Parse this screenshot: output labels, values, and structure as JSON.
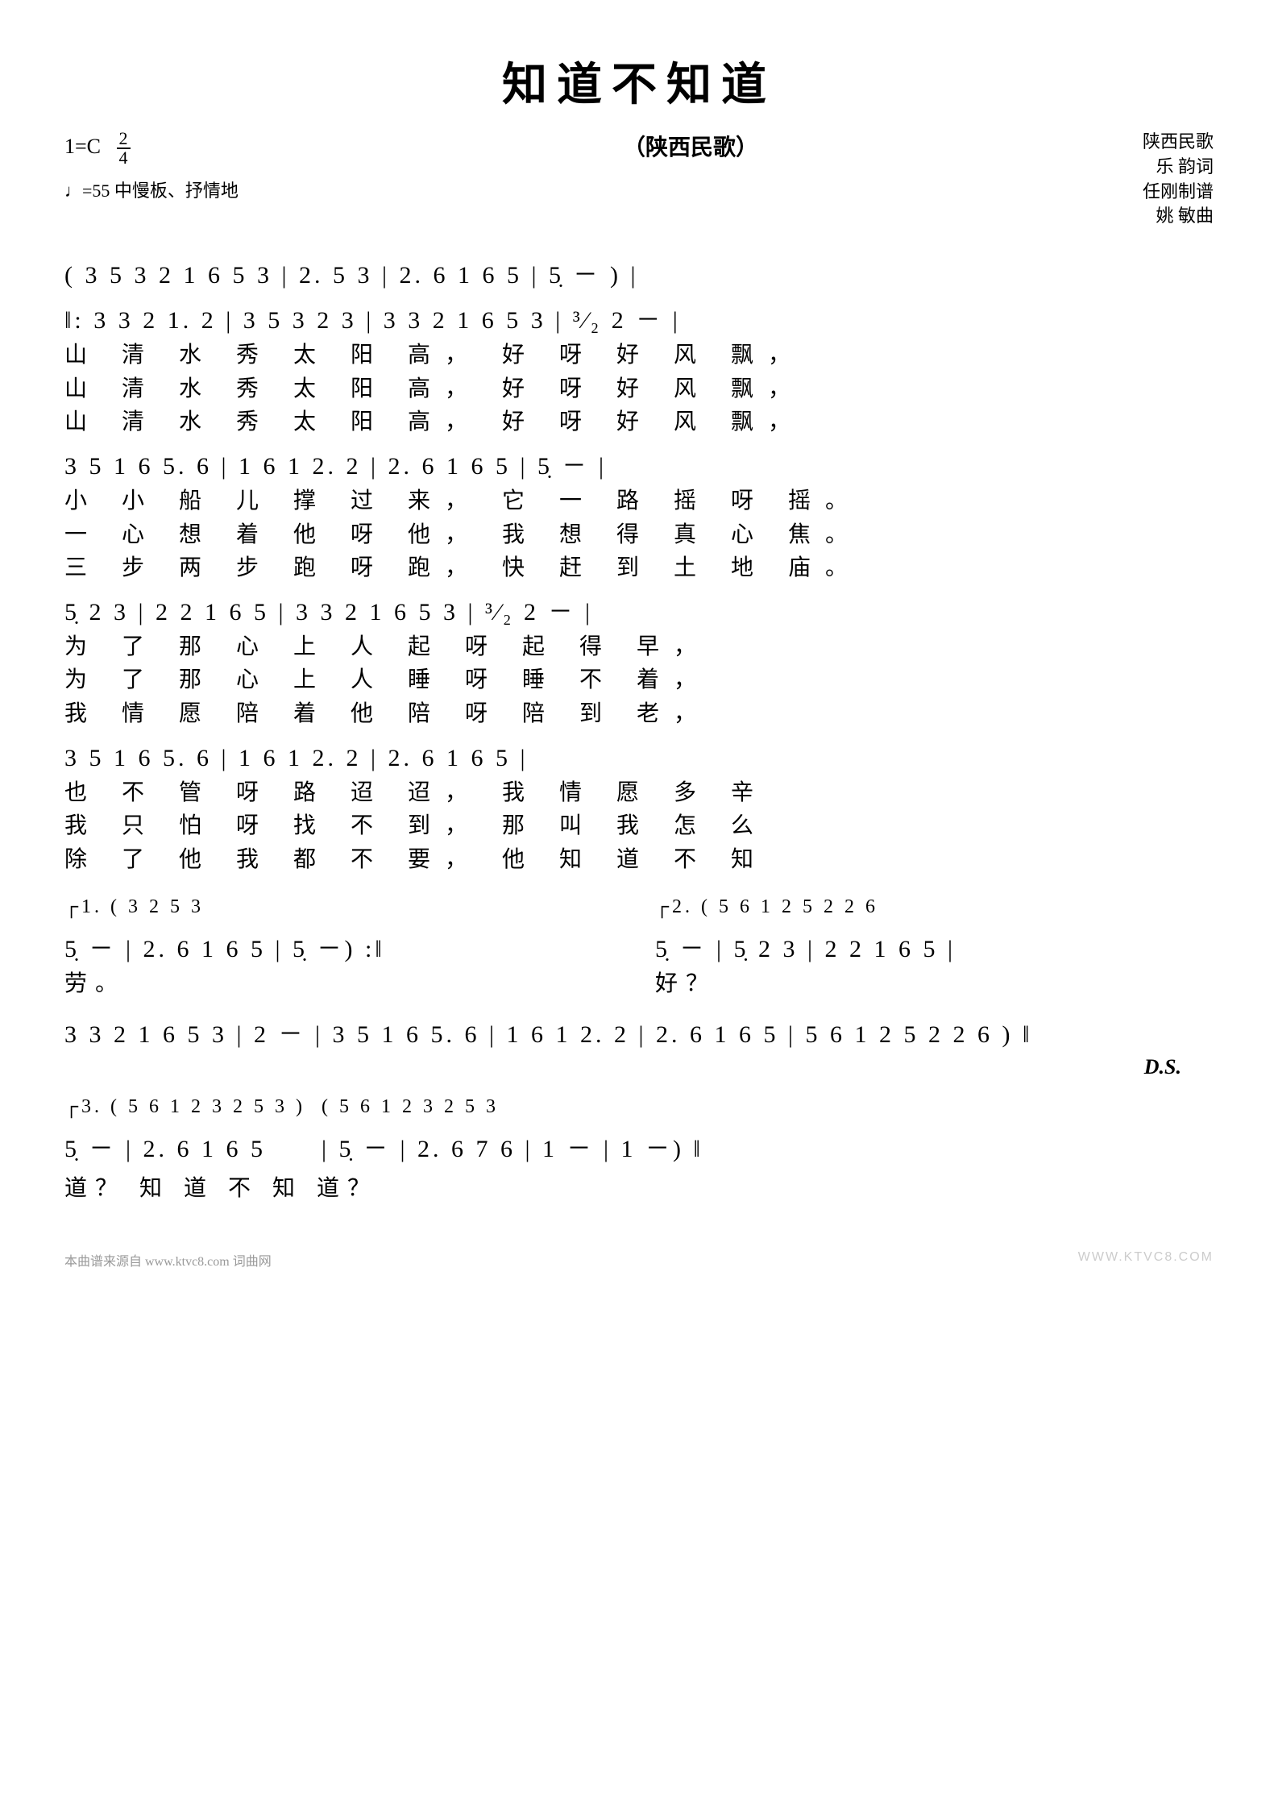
{
  "title": "知道不知道",
  "subtitle": "（陕西民歌）",
  "meta": {
    "key": "1=C",
    "time_top": "2",
    "time_bot": "4",
    "tempo": "♩=55  中慢板、抒情地"
  },
  "credits": [
    "陕西民歌",
    "乐  韵词",
    "任刚制谱",
    "姚  敏曲"
  ],
  "score": {
    "l1": "( 3 5 3 2   1 6 5 3  | 2.    5 3  | 2.   6   1 6 5  | 5̣   － )       |",
    "l2": "‖: 3   3 2   1.   2  | 3 5 3 2  3    | 3  3 2   1 6 5 3  | ³⁄₂ 2   －    |",
    "l3": "3 5 1 6   5.   6  | 1  6  1   2.   2  | 2.   6   1  6  5  | 5̣   －      |",
    "l4": "5̣   2    3  | 2  2 1   6  5  | 3   3 2   1 6 5 3  | ³⁄₂ 2   －     |",
    "l5": "3 5 1 6   5.    6  | 1   6   1   2.    2  | 2.   6    1   6   5  |",
    "l6a": "┌1.   ( 3 2 5 3",
    "l6b": "  5̣  －  | 2. 6  1 6 5 | 5̣  －)  :‖",
    "l6c": "┌2. ( 5 6 1 2   5 2 2 6",
    "l6d": "  5̣   －    | 5̣  2  3 | 2 2 1  6 5 |",
    "l7": "3 3 2  1 6 5 3 | 2  －  | 3 5 1 6  5. 6 | 1 6 1  2. 2 | 2. 6  1 6 5 | 5 6 1 2  5 2 2 6 ) ‖",
    "l8a": "┌3. ( 5 6 1 2   3 2 5 3 )",
    "l8b": "  5̣   －    | 2.  6   1  6  5",
    "l8c": "( 5 6 1 2   3 2 5 3",
    "l8d": "| 5̣   －    | 2.  6  7  6 | 1  －  | 1  －) ‖"
  },
  "lyrics": {
    "v1a": "山 清 水  秀  太  阳  高，  好  呀  好  风    飘，",
    "v2a": "山 清 水  秀  太  阳  高，  好  呀  好  风    飘，",
    "v3a": "山 清 水  秀  太  阳  高，  好  呀  好  风    飘，",
    "v1b": "小  小  船 儿 撑  过  来， 它 一  路 摇  呀   摇。",
    "v2b": "一  心  想 着 他  呀  他， 我 想  得 真  心   焦。",
    "v3b": "三  步  两 步 跑  呀  跑， 快 赶  到 土  地   庙。",
    "v1c": "为  了   那 心  上   人   起  呀  起  得    早，",
    "v2c": "为  了   那 心  上   人   睡  呀  睡  不    着，",
    "v3c": "我  情   愿 陪  着   他   陪  呀  陪  到    老，",
    "v1d": "也   不   管  呀  路  迢    迢， 我  情  愿  多  辛",
    "v2d": "我   只   怕  呀  找  不    到， 那  叫  我  怎  么",
    "v3d": "除   了   他  我  都  不    要， 他  知  道  不  知",
    "end1": "劳。",
    "end2": "好？",
    "end3": "道？         知 道 不 知  道？"
  },
  "ds": "D.S.",
  "footer_left": "本曲谱来源自 www.ktvc8.com 词曲网",
  "footer_right": "WWW.KTVC8.COM"
}
